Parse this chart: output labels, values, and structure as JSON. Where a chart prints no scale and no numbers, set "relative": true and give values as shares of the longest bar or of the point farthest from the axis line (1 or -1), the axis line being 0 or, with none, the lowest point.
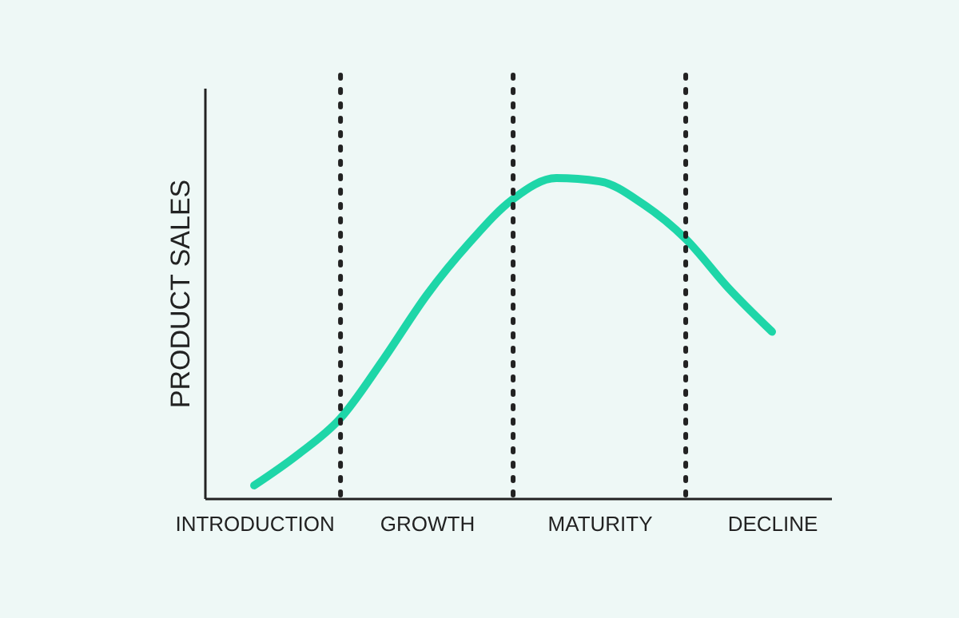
{
  "chart_data": {
    "type": "line",
    "relative": true,
    "ylabel": "PRODUCT SALES",
    "categories": [
      null,
      "INTRODUCTION",
      null,
      null,
      null,
      "GROWTH",
      null,
      null,
      null,
      "MATURITY",
      null,
      null,
      null,
      "DECLINE"
    ],
    "series": [
      {
        "color": "#1ed6a8",
        "values": [
          null,
          0.04,
          0.135,
          0.25,
          0.435,
          0.635,
          0.8,
          0.935,
          1.0,
          0.99,
          0.92,
          0.81,
          0.655,
          0.52
        ]
      }
    ],
    "tick_labels": "x",
    "grid": "x",
    "marker": "none",
    "line_style": "solid"
  }
}
